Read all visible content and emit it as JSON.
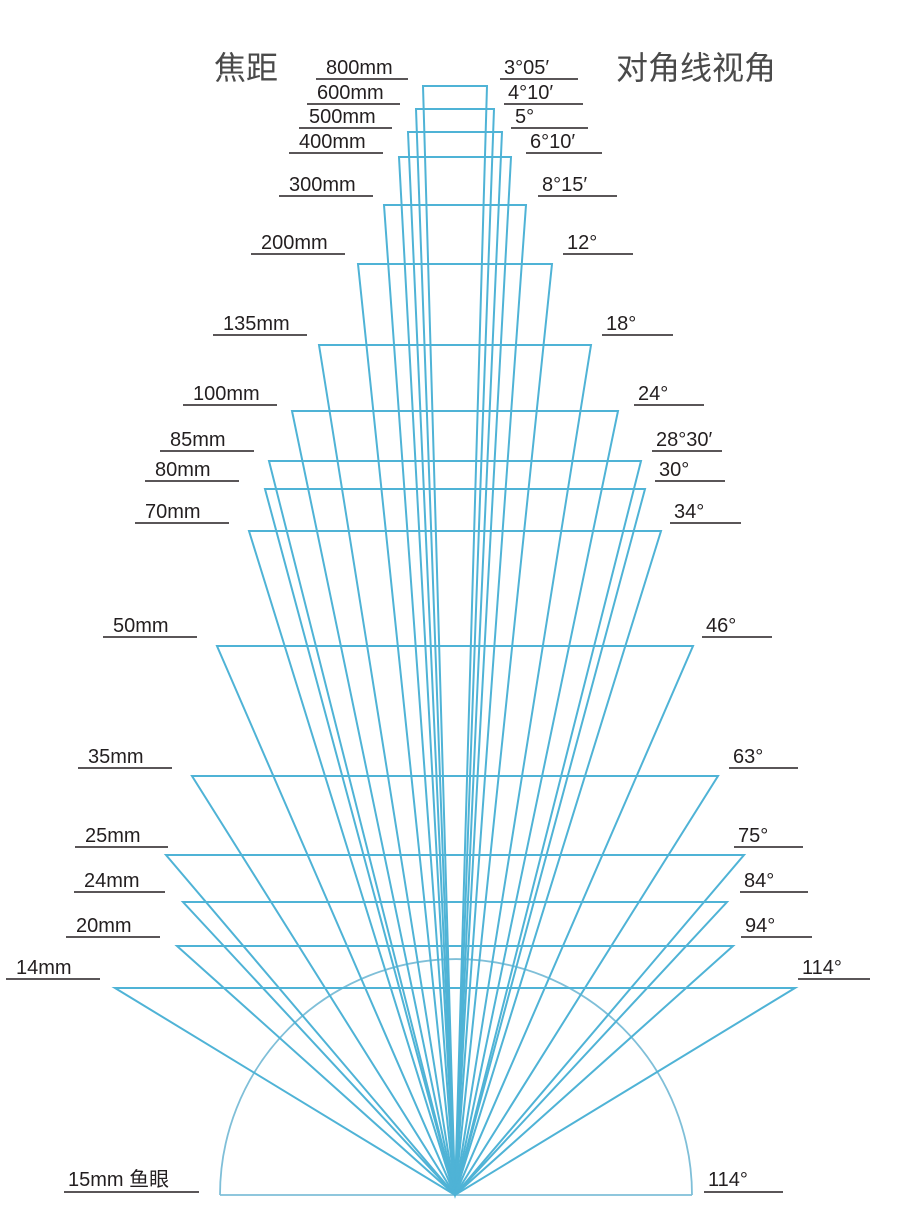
{
  "headings": {
    "focal": "焦距",
    "angle": "对角线视角"
  },
  "lenses": [
    {
      "focal": "800mm",
      "angle": "3°05′"
    },
    {
      "focal": "600mm",
      "angle": "4°10′"
    },
    {
      "focal": "500mm",
      "angle": "5°"
    },
    {
      "focal": "400mm",
      "angle": "6°10′"
    },
    {
      "focal": "300mm",
      "angle": "8°15′"
    },
    {
      "focal": "200mm",
      "angle": "12°"
    },
    {
      "focal": "135mm",
      "angle": "18°"
    },
    {
      "focal": "100mm",
      "angle": "24°"
    },
    {
      "focal": "85mm",
      "angle": "28°30′"
    },
    {
      "focal": "80mm",
      "angle": "30°"
    },
    {
      "focal": "70mm",
      "angle": "34°"
    },
    {
      "focal": "50mm",
      "angle": "46°"
    },
    {
      "focal": "35mm",
      "angle": "63°"
    },
    {
      "focal": "25mm",
      "angle": "75°"
    },
    {
      "focal": "24mm",
      "angle": "84°"
    },
    {
      "focal": "20mm",
      "angle": "94°"
    },
    {
      "focal": "14mm",
      "angle": "114°"
    }
  ],
  "fisheye": {
    "focal": "15mm 鱼眼",
    "angle": "114°"
  },
  "colors": {
    "cone": "#4fb3d6",
    "fisheye": "#7fbfd8",
    "text": "#231f20",
    "heading": "#4a4a4a"
  }
}
